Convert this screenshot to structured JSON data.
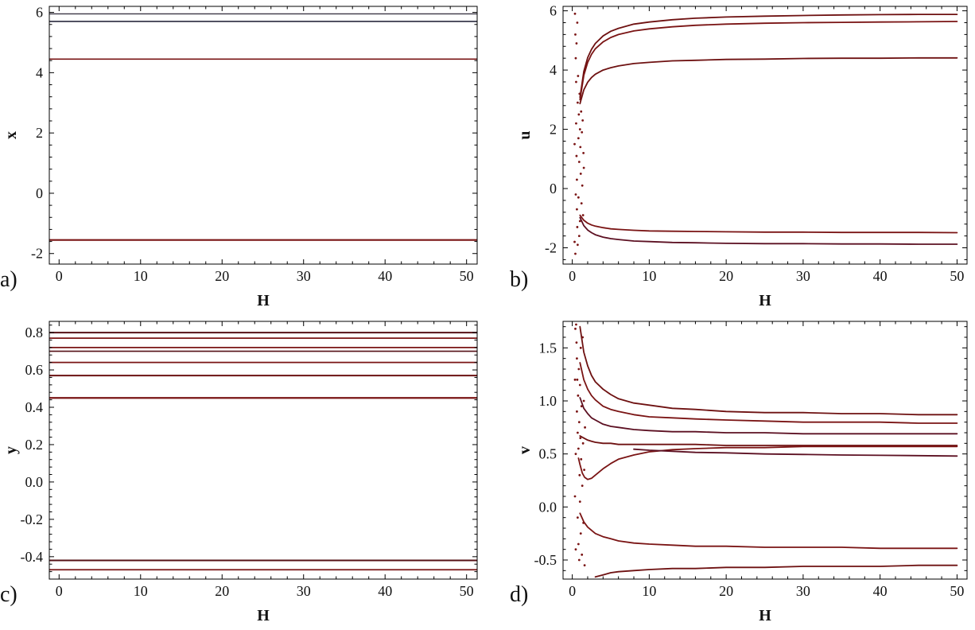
{
  "figure": {
    "description": "Four-panel bifurcation-style figure of fixed-point branches versus parameter H",
    "accent_color": "#7a1414",
    "dark_line_color": "#2a2a3e",
    "frame_color": "#000000"
  },
  "chart_data": [
    {
      "id": "a",
      "type": "line",
      "panel_label": "a)",
      "xlabel": "H",
      "ylabel": "x",
      "xlim": [
        -1.2,
        51.3
      ],
      "ylim": [
        -2.35,
        6.2
      ],
      "xticks": [
        0,
        10,
        20,
        30,
        40,
        50
      ],
      "xtick_labels": [
        "0",
        "10",
        "20",
        "30",
        "40",
        "50"
      ],
      "yticks": [
        -2,
        0,
        2,
        4,
        6
      ],
      "ytick_labels": [
        "-2",
        "0",
        "2",
        "4",
        "6"
      ],
      "legend": "none",
      "grid": false,
      "series": [
        {
          "name": "x-branch-1",
          "style": "hline",
          "y": 5.95,
          "color": "#3b3644",
          "w": 1.4
        },
        {
          "name": "x-branch-2",
          "style": "hline",
          "y": 5.7,
          "color": "#2a2a3e",
          "w": 1.7
        },
        {
          "name": "x-branch-3",
          "style": "hline",
          "y": 4.45,
          "color": "#7a1414",
          "w": 1.7
        },
        {
          "name": "x-branch-4",
          "style": "hline",
          "y": -1.55,
          "color": "#7a1414",
          "w": 2.1
        }
      ]
    },
    {
      "id": "b",
      "type": "scatter",
      "panel_label": "b)",
      "xlabel": "H",
      "ylabel": "u",
      "xlim": [
        -1.2,
        51.3
      ],
      "ylim": [
        -2.55,
        6.15
      ],
      "xticks": [
        0,
        10,
        20,
        30,
        40,
        50
      ],
      "xtick_labels": [
        "0",
        "10",
        "20",
        "30",
        "40",
        "50"
      ],
      "yticks": [
        -2,
        0,
        2,
        4,
        6
      ],
      "ytick_labels": [
        "-2",
        "0",
        "2",
        "4",
        "6"
      ],
      "legend": "none",
      "grid": false,
      "series": [
        {
          "name": "u-transient-scatter",
          "style": "dots",
          "color": "#7a1414",
          "x": [
            0.35,
            0.4,
            0.45,
            0.5,
            0.5,
            0.55,
            0.6,
            0.6,
            0.65,
            0.7,
            0.7,
            0.75,
            0.8,
            0.8,
            0.85,
            0.9,
            0.9,
            0.95,
            1.0,
            1.0,
            1.05,
            1.1,
            1.15,
            1.2,
            1.25,
            1.3,
            1.35,
            1.4,
            1.45,
            1.5,
            0.4,
            0.45,
            0.55,
            0.65,
            0.3,
            0.3
          ],
          "y": [
            5.9,
            5.2,
            4.4,
            3.6,
            2.2,
            1.1,
            0.3,
            -0.7,
            -1.3,
            -1.9,
            2.9,
            3.8,
            1.7,
            -0.3,
            2.5,
            0.9,
            -1.6,
            3.2,
            2.0,
            -1.1,
            1.4,
            0.5,
            2.6,
            -0.5,
            1.9,
            0.1,
            2.3,
            -0.9,
            1.2,
            0.7,
            -2.2,
            -0.2,
            4.9,
            5.6,
            1.5,
            -1.8
          ]
        },
        {
          "name": "u-branch-1",
          "style": "curve",
          "color": "#6e1111",
          "w": 1.8,
          "x": [
            1,
            1.5,
            2,
            2.5,
            3,
            4,
            5,
            6,
            8,
            10,
            13,
            16,
            20,
            25,
            30,
            35,
            40,
            45,
            50
          ],
          "y": [
            3.08,
            3.95,
            4.42,
            4.7,
            4.9,
            5.15,
            5.31,
            5.41,
            5.55,
            5.62,
            5.7,
            5.75,
            5.79,
            5.82,
            5.84,
            5.86,
            5.87,
            5.88,
            5.88
          ]
        },
        {
          "name": "u-branch-2",
          "style": "curve",
          "color": "#7a1414",
          "w": 1.8,
          "x": [
            1,
            1.5,
            2,
            2.5,
            3,
            4,
            5,
            6,
            8,
            10,
            13,
            16,
            20,
            25,
            30,
            35,
            40,
            45,
            50
          ],
          "y": [
            3.0,
            3.82,
            4.26,
            4.53,
            4.72,
            4.95,
            5.1,
            5.2,
            5.32,
            5.39,
            5.46,
            5.51,
            5.55,
            5.58,
            5.6,
            5.61,
            5.62,
            5.63,
            5.64
          ]
        },
        {
          "name": "u-branch-3",
          "style": "curve",
          "color": "#6e1111",
          "w": 1.8,
          "x": [
            1,
            1.5,
            2,
            2.5,
            3,
            4,
            5,
            6,
            8,
            10,
            13,
            16,
            20,
            25,
            30,
            35,
            40,
            45,
            50
          ],
          "y": [
            2.87,
            3.33,
            3.59,
            3.75,
            3.86,
            4.0,
            4.08,
            4.14,
            4.22,
            4.26,
            4.31,
            4.33,
            4.36,
            4.37,
            4.39,
            4.4,
            4.4,
            4.41,
            4.41
          ]
        },
        {
          "name": "u-branch-4",
          "style": "curve",
          "color": "#7a1414",
          "w": 1.8,
          "x": [
            1,
            1.5,
            2,
            2.5,
            3,
            4,
            5,
            6,
            8,
            10,
            13,
            16,
            20,
            25,
            30,
            35,
            40,
            45,
            50
          ],
          "y": [
            -0.9,
            -1.07,
            -1.17,
            -1.23,
            -1.27,
            -1.32,
            -1.36,
            -1.38,
            -1.41,
            -1.43,
            -1.44,
            -1.45,
            -1.46,
            -1.47,
            -1.47,
            -1.48,
            -1.48,
            -1.48,
            -1.49
          ]
        },
        {
          "name": "u-branch-5",
          "style": "curve",
          "color": "#5c1022",
          "w": 1.8,
          "x": [
            1,
            1.5,
            2,
            2.5,
            3,
            4,
            5,
            6,
            8,
            10,
            13,
            16,
            20,
            25,
            30,
            35,
            40,
            45,
            50
          ],
          "y": [
            -0.98,
            -1.25,
            -1.4,
            -1.49,
            -1.56,
            -1.64,
            -1.69,
            -1.72,
            -1.77,
            -1.79,
            -1.82,
            -1.83,
            -1.85,
            -1.86,
            -1.86,
            -1.87,
            -1.87,
            -1.88,
            -1.88
          ]
        }
      ]
    },
    {
      "id": "c",
      "type": "line",
      "panel_label": "c)",
      "xlabel": "H",
      "ylabel": "y",
      "xlim": [
        -1.2,
        51.3
      ],
      "ylim": [
        -0.52,
        0.86
      ],
      "xticks": [
        0,
        10,
        20,
        30,
        40,
        50
      ],
      "xtick_labels": [
        "0",
        "10",
        "20",
        "30",
        "40",
        "50"
      ],
      "yticks": [
        -0.4,
        -0.2,
        0.0,
        0.2,
        0.4,
        0.6,
        0.8
      ],
      "ytick_labels": [
        "-0.4",
        "-0.2",
        "0.0",
        "0.2",
        "0.4",
        "0.6",
        "0.8"
      ],
      "legend": "none",
      "grid": false,
      "series": [
        {
          "name": "y-branch-1",
          "style": "hline",
          "y": 0.8,
          "color": "#551016",
          "w": 2.0
        },
        {
          "name": "y-branch-2",
          "style": "hline",
          "y": 0.77,
          "color": "#7a1414",
          "w": 1.7
        },
        {
          "name": "y-branch-3",
          "style": "hline",
          "y": 0.72,
          "color": "#7a1414",
          "w": 1.7
        },
        {
          "name": "y-branch-4",
          "style": "hline",
          "y": 0.7,
          "color": "#551016",
          "w": 1.7
        },
        {
          "name": "y-branch-5",
          "style": "hline",
          "y": 0.64,
          "color": "#7a1414",
          "w": 1.8
        },
        {
          "name": "y-branch-6",
          "style": "hline",
          "y": 0.57,
          "color": "#6b1212",
          "w": 2.0
        },
        {
          "name": "y-branch-7",
          "style": "hline",
          "y": 0.45,
          "color": "#7a1414",
          "w": 2.2
        },
        {
          "name": "y-branch-8",
          "style": "hline",
          "y": -0.42,
          "color": "#551016",
          "w": 2.0
        },
        {
          "name": "y-branch-9",
          "style": "hline",
          "y": -0.47,
          "color": "#7a1414",
          "w": 1.8
        }
      ]
    },
    {
      "id": "d",
      "type": "scatter",
      "panel_label": "d)",
      "xlabel": "H",
      "ylabel": "v",
      "xlim": [
        -1.2,
        51.3
      ],
      "ylim": [
        -0.68,
        1.75
      ],
      "xticks": [
        0,
        10,
        20,
        30,
        40,
        50
      ],
      "xtick_labels": [
        "0",
        "10",
        "20",
        "30",
        "40",
        "50"
      ],
      "yticks": [
        -0.5,
        0.0,
        0.5,
        1.0,
        1.5
      ],
      "ytick_labels": [
        "-0.5",
        "0.0",
        "0.5",
        "1.0",
        "1.5"
      ],
      "legend": "none",
      "grid": false,
      "series": [
        {
          "name": "v-transient-scatter",
          "style": "dots",
          "color": "#7a1414",
          "x": [
            0.5,
            0.55,
            0.6,
            0.6,
            0.65,
            0.7,
            0.7,
            0.75,
            0.8,
            0.8,
            0.85,
            0.9,
            0.9,
            0.95,
            1.0,
            1.0,
            1.05,
            1.1,
            1.1,
            1.15,
            1.2,
            1.25,
            1.3,
            1.35,
            1.4,
            1.45,
            1.5,
            1.55,
            1.6,
            1.65,
            0.4,
            0.45,
            0.45,
            0.35,
            0.35
          ],
          "y": [
            1.72,
            1.55,
            1.4,
            0.9,
            1.2,
            0.7,
            -0.1,
            1.05,
            0.55,
            -0.35,
            1.3,
            0.8,
            -0.5,
            0.3,
            1.15,
            0.05,
            0.65,
            -0.25,
            1.5,
            0.45,
            0.95,
            -0.45,
            0.2,
            1.6,
            0.6,
            -0.15,
            1.0,
            0.35,
            -0.55,
            0.75,
            1.68,
            0.5,
            -0.4,
            1.2,
            0.1
          ]
        },
        {
          "name": "v-branch-1",
          "style": "curve",
          "color": "#6e1111",
          "w": 1.8,
          "x": [
            1,
            1.5,
            2,
            2.5,
            3,
            4,
            5,
            6,
            8,
            10,
            13,
            16,
            20,
            25,
            30,
            35,
            40,
            45,
            50
          ],
          "y": [
            1.7,
            1.46,
            1.33,
            1.24,
            1.18,
            1.11,
            1.06,
            1.02,
            0.98,
            0.96,
            0.93,
            0.92,
            0.9,
            0.89,
            0.89,
            0.88,
            0.88,
            0.87,
            0.87
          ]
        },
        {
          "name": "v-branch-2",
          "style": "curve",
          "color": "#7a1414",
          "w": 1.8,
          "x": [
            1,
            1.5,
            2,
            2.5,
            3,
            4,
            5,
            6,
            8,
            10,
            13,
            16,
            20,
            25,
            30,
            35,
            40,
            45,
            50
          ],
          "y": [
            1.36,
            1.2,
            1.11,
            1.05,
            1.01,
            0.95,
            0.92,
            0.9,
            0.87,
            0.85,
            0.84,
            0.83,
            0.82,
            0.81,
            0.8,
            0.8,
            0.8,
            0.79,
            0.79
          ]
        },
        {
          "name": "v-branch-3",
          "style": "curve",
          "color": "#5c1022",
          "w": 1.8,
          "x": [
            1,
            1.5,
            2,
            2.5,
            3,
            4,
            5,
            6,
            8,
            10,
            13,
            16,
            20,
            25,
            30,
            35,
            40,
            45,
            50
          ],
          "y": [
            1.03,
            0.93,
            0.88,
            0.84,
            0.82,
            0.78,
            0.76,
            0.75,
            0.73,
            0.72,
            0.71,
            0.71,
            0.7,
            0.7,
            0.69,
            0.69,
            0.69,
            0.69,
            0.69
          ]
        },
        {
          "name": "v-branch-4",
          "style": "curve",
          "color": "#6e1111",
          "w": 1.8,
          "x": [
            1,
            1.5,
            2,
            2.5,
            3,
            4,
            5,
            6,
            8,
            10,
            13,
            16,
            20,
            25,
            30,
            35,
            40,
            45,
            50
          ],
          "y": [
            0.67,
            0.65,
            0.63,
            0.62,
            0.61,
            0.6,
            0.6,
            0.59,
            0.59,
            0.59,
            0.59,
            0.59,
            0.58,
            0.58,
            0.58,
            0.58,
            0.58,
            0.58,
            0.58
          ]
        },
        {
          "name": "v-branch-5",
          "style": "curve",
          "color": "#7a1414",
          "w": 1.8,
          "x": [
            0.8,
            1,
            1.3,
            1.6,
            2,
            2.5,
            3,
            4,
            5,
            6,
            8,
            10,
            13,
            16,
            20,
            25,
            30,
            40,
            50
          ],
          "y": [
            0.46,
            0.4,
            0.32,
            0.28,
            0.26,
            0.27,
            0.3,
            0.36,
            0.41,
            0.45,
            0.49,
            0.52,
            0.54,
            0.55,
            0.56,
            0.56,
            0.57,
            0.57,
            0.57
          ]
        },
        {
          "name": "v-branch-6",
          "style": "curve",
          "color": "#5c1022",
          "w": 1.8,
          "x": [
            8,
            10,
            13,
            16,
            20,
            25,
            30,
            35,
            40,
            45,
            50
          ],
          "y": [
            0.545,
            0.535,
            0.525,
            0.515,
            0.51,
            0.5,
            0.495,
            0.49,
            0.487,
            0.484,
            0.48
          ]
        },
        {
          "name": "v-branch-7",
          "style": "curve",
          "color": "#7a1414",
          "w": 1.8,
          "x": [
            1,
            1.5,
            2,
            2.5,
            3,
            4,
            5,
            6,
            8,
            10,
            13,
            16,
            20,
            25,
            30,
            35,
            40,
            45,
            50
          ],
          "y": [
            -0.06,
            -0.14,
            -0.19,
            -0.22,
            -0.25,
            -0.28,
            -0.3,
            -0.32,
            -0.34,
            -0.35,
            -0.36,
            -0.37,
            -0.37,
            -0.38,
            -0.38,
            -0.38,
            -0.39,
            -0.39,
            -0.39
          ]
        },
        {
          "name": "v-branch-8",
          "style": "curve",
          "color": "#6e1111",
          "w": 1.8,
          "x": [
            3,
            4,
            5,
            6,
            8,
            10,
            13,
            16,
            20,
            25,
            30,
            35,
            40,
            45,
            50
          ],
          "y": [
            -0.66,
            -0.64,
            -0.62,
            -0.61,
            -0.6,
            -0.59,
            -0.58,
            -0.58,
            -0.57,
            -0.57,
            -0.56,
            -0.56,
            -0.56,
            -0.55,
            -0.55
          ]
        }
      ]
    }
  ]
}
